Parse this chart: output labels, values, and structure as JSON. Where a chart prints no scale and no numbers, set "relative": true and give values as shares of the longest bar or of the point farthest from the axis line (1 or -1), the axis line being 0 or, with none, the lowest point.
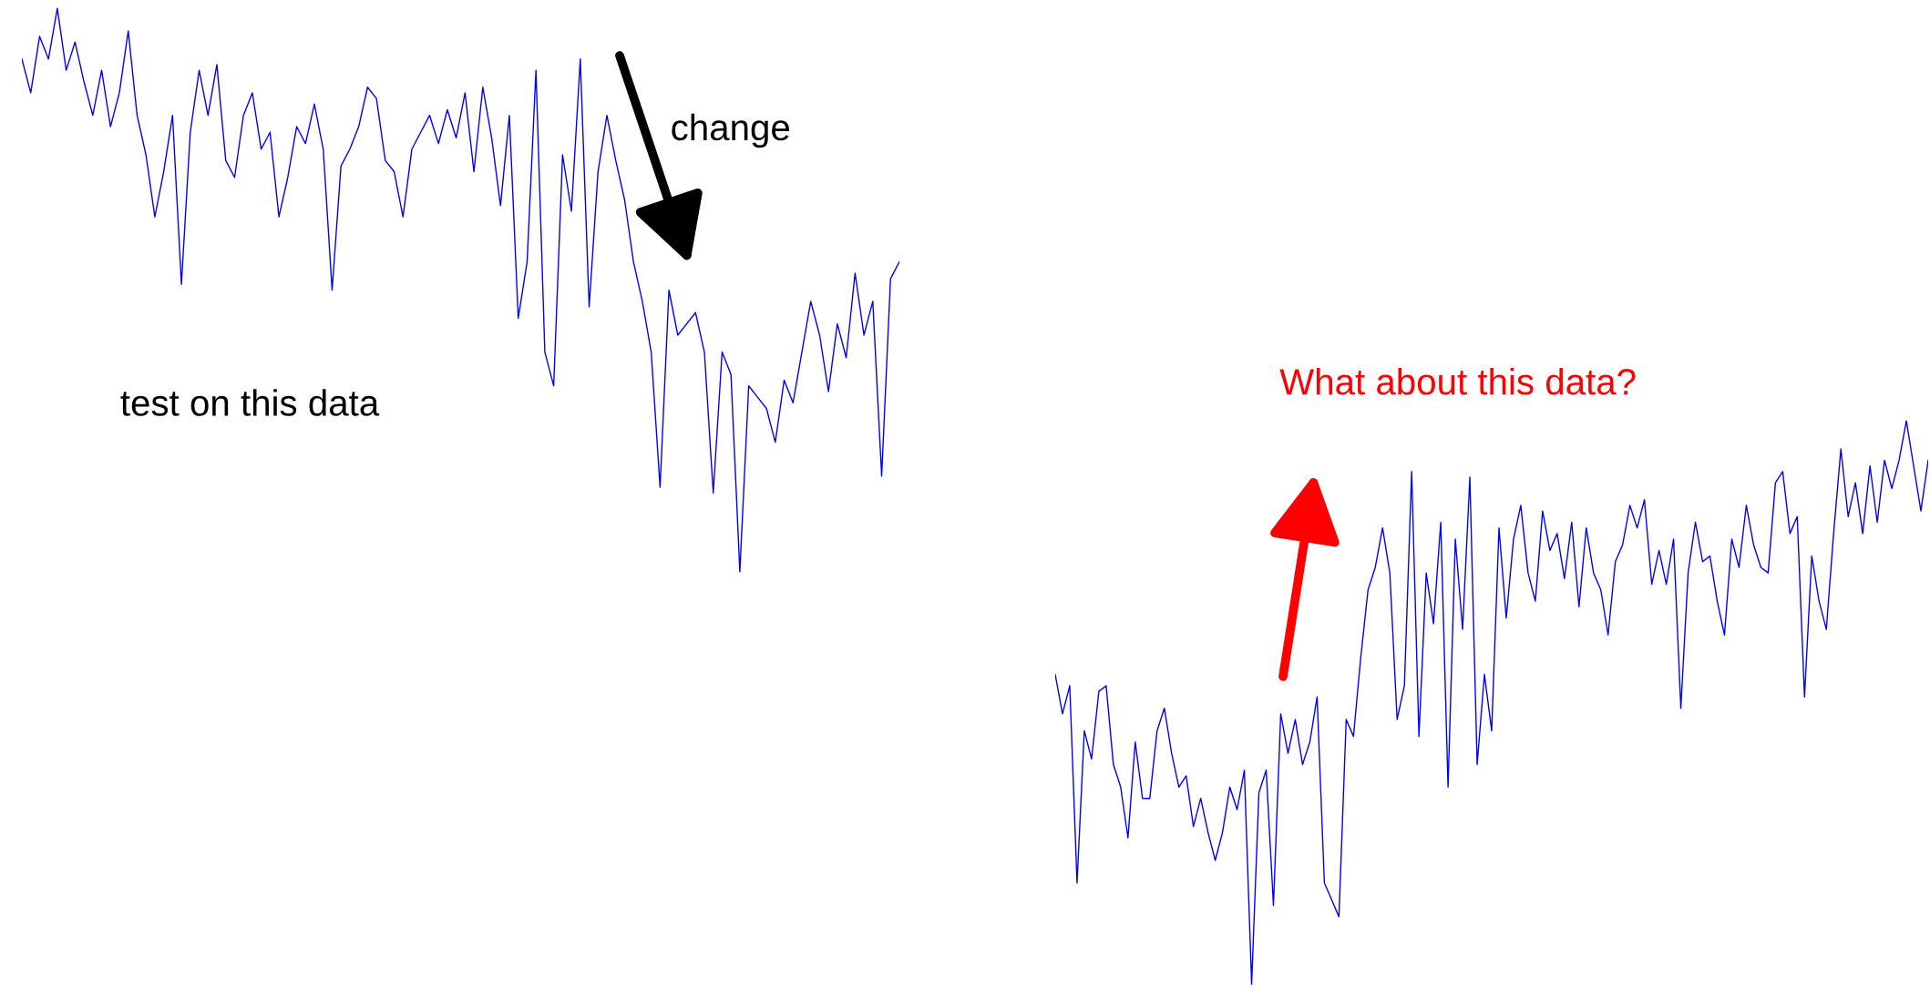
{
  "chart_data": [
    {
      "type": "line",
      "relative": true,
      "categories": [
        null,
        null,
        null,
        null,
        null,
        null,
        null,
        null,
        null,
        null,
        null,
        null,
        null,
        null,
        null,
        null,
        null,
        null,
        null,
        null,
        null,
        null,
        null,
        null,
        null,
        null,
        null,
        null,
        null,
        null,
        null,
        null,
        null,
        null,
        null,
        null,
        null,
        null,
        null,
        null,
        null,
        null,
        null,
        null,
        null,
        null,
        null,
        null,
        null,
        null,
        null,
        null,
        null,
        null,
        null,
        null,
        null,
        null,
        null,
        null,
        null,
        null,
        null,
        null,
        null,
        null,
        null,
        null,
        null,
        null,
        null,
        null,
        null,
        null,
        null,
        null,
        null,
        null,
        null,
        null,
        null,
        null,
        null,
        null,
        null,
        null,
        null,
        null,
        null,
        null,
        null,
        null,
        null,
        null,
        null,
        null,
        null,
        null,
        null,
        null
      ],
      "series": [
        {
          "color": "#0000ff",
          "values": [
            0.91,
            0.85,
            0.95,
            0.91,
            1.0,
            0.89,
            0.94,
            0.87,
            0.81,
            0.89,
            0.79,
            0.85,
            0.96,
            0.81,
            0.74,
            0.63,
            0.71,
            0.81,
            0.51,
            0.78,
            0.89,
            0.81,
            0.9,
            0.73,
            0.7,
            0.81,
            0.85,
            0.75,
            0.78,
            0.63,
            0.7,
            0.79,
            0.76,
            0.83,
            0.75,
            0.5,
            0.72,
            0.75,
            0.79,
            0.86,
            0.84,
            0.73,
            0.71,
            0.63,
            0.75,
            0.78,
            0.81,
            0.76,
            0.82,
            0.77,
            0.85,
            0.71,
            0.86,
            0.77,
            0.65,
            0.81,
            0.45,
            0.55,
            0.89,
            0.39,
            0.33,
            0.74,
            0.64,
            0.91,
            0.47,
            0.71,
            0.81,
            0.73,
            0.66,
            0.55,
            0.48,
            0.39,
            0.15,
            0.5,
            0.42,
            0.44,
            0.46,
            0.39,
            0.14,
            0.39,
            0.35,
            0.0,
            0.33,
            0.31,
            0.29,
            0.23,
            0.34,
            0.3,
            0.39,
            0.48,
            0.42,
            0.32,
            0.44,
            0.38,
            0.53,
            0.42,
            0.48,
            0.17,
            0.52,
            0.55
          ]
        }
      ],
      "annotations": [
        "test on this data",
        "change"
      ]
    },
    {
      "type": "line",
      "relative": true,
      "categories": [
        null,
        null,
        null,
        null,
        null,
        null,
        null,
        null,
        null,
        null,
        null,
        null,
        null,
        null,
        null,
        null,
        null,
        null,
        null,
        null,
        null,
        null,
        null,
        null,
        null,
        null,
        null,
        null,
        null,
        null,
        null,
        null,
        null,
        null,
        null,
        null,
        null,
        null,
        null,
        null,
        null,
        null,
        null,
        null,
        null,
        null,
        null,
        null,
        null,
        null,
        null,
        null,
        null,
        null,
        null,
        null,
        null,
        null,
        null,
        null,
        null,
        null,
        null,
        null,
        null,
        null,
        null,
        null,
        null,
        null,
        null,
        null,
        null,
        null,
        null,
        null,
        null,
        null,
        null,
        null,
        null,
        null,
        null,
        null,
        null,
        null,
        null,
        null,
        null,
        null,
        null,
        null,
        null,
        null,
        null,
        null,
        null,
        null,
        null,
        null,
        null,
        null,
        null,
        null,
        null,
        null,
        null,
        null,
        null,
        null,
        null,
        null,
        null,
        null,
        null,
        null,
        null,
        null,
        null,
        null,
        null
      ],
      "series": [
        {
          "color": "#0000ff",
          "values": [
            0.55,
            0.48,
            0.53,
            0.18,
            0.45,
            0.4,
            0.52,
            0.53,
            0.39,
            0.35,
            0.26,
            0.43,
            0.33,
            0.33,
            0.45,
            0.49,
            0.41,
            0.35,
            0.37,
            0.28,
            0.33,
            0.27,
            0.22,
            0.27,
            0.35,
            0.31,
            0.38,
            0.0,
            0.34,
            0.38,
            0.14,
            0.48,
            0.41,
            0.47,
            0.39,
            0.43,
            0.51,
            0.18,
            0.15,
            0.12,
            0.47,
            0.44,
            0.58,
            0.7,
            0.74,
            0.81,
            0.73,
            0.47,
            0.53,
            0.91,
            0.44,
            0.73,
            0.64,
            0.82,
            0.35,
            0.79,
            0.63,
            0.9,
            0.39,
            0.55,
            0.45,
            0.81,
            0.65,
            0.79,
            0.85,
            0.73,
            0.68,
            0.84,
            0.77,
            0.8,
            0.72,
            0.82,
            0.67,
            0.81,
            0.73,
            0.7,
            0.62,
            0.75,
            0.78,
            0.85,
            0.81,
            0.86,
            0.71,
            0.77,
            0.71,
            0.79,
            0.49,
            0.73,
            0.82,
            0.75,
            0.76,
            0.68,
            0.62,
            0.79,
            0.74,
            0.85,
            0.78,
            0.74,
            0.73,
            0.89,
            0.91,
            0.8,
            0.83,
            0.51,
            0.76,
            0.68,
            0.63,
            0.8,
            0.95,
            0.83,
            0.89,
            0.8,
            0.92,
            0.82,
            0.93,
            0.88,
            0.93,
            1.0,
            0.92,
            0.84,
            0.93
          ]
        }
      ],
      "annotations": [
        "What about this data?"
      ]
    }
  ]
}
